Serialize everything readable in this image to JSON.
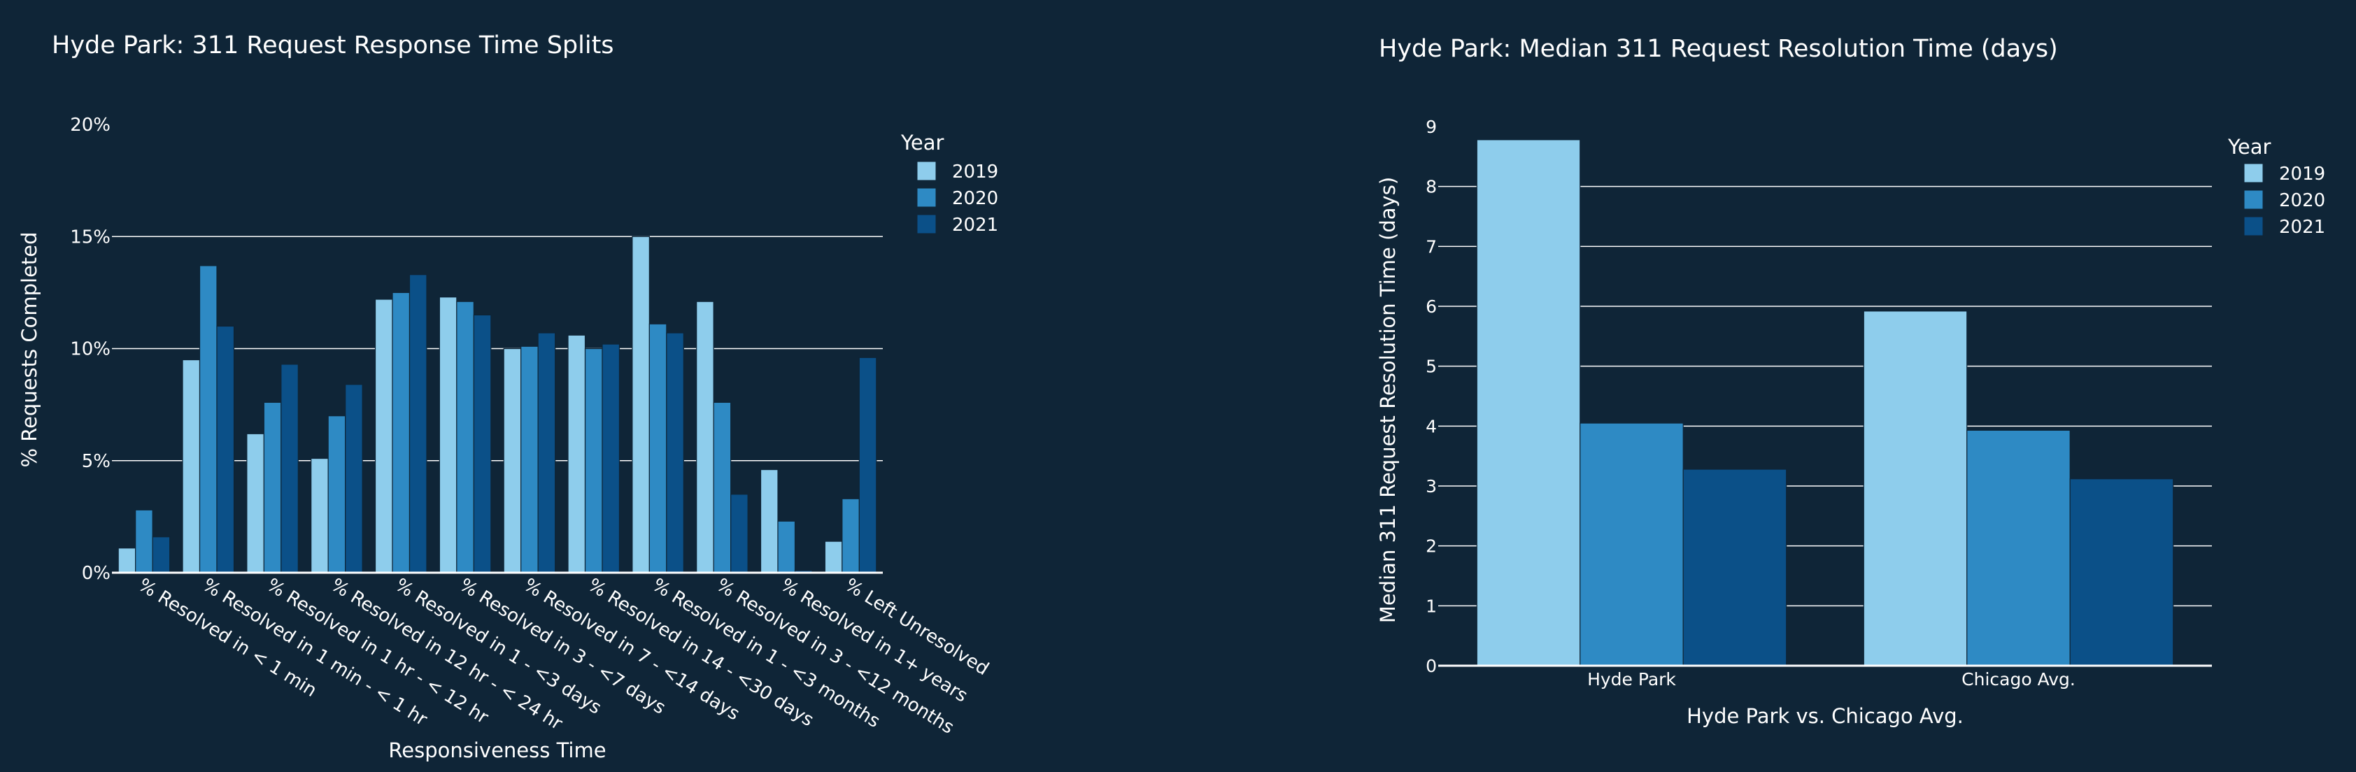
{
  "chart_data": [
    {
      "type": "bar",
      "title": "Hyde Park: 311 Request Response Time Splits",
      "xlabel": "Responsiveness Time",
      "ylabel": "% Requests Completed",
      "ylim": [
        0,
        20
      ],
      "yticks": [
        0,
        5,
        10,
        15,
        20
      ],
      "ytick_labels": [
        "0%",
        "5%",
        "10%",
        "15%",
        "20%"
      ],
      "grid": true,
      "legend_title": "Year",
      "legend_position": "top-right",
      "categories": [
        "% Resolved in < 1 min",
        "% Resolved in 1 min - < 1 hr",
        "% Resolved in 1 hr - < 12 hr",
        "% Resolved in 12 hr - < 24 hr",
        "% Resolved in 1 - <3 days",
        "% Resolved in 3 - <7 days",
        "% Resolved in 7 - <14 days",
        "% Resolved in 14 - <30 days",
        "% Resolved in 1 - <3 months",
        "% Resolved in 3 - <12 months",
        "% Resolved in 1+ years",
        "% Left Unresolved"
      ],
      "series": [
        {
          "name": "2019",
          "color": "#8ecdec",
          "values": [
            1.1,
            9.5,
            6.2,
            5.1,
            12.2,
            12.3,
            10.0,
            10.6,
            15.0,
            12.1,
            4.6,
            1.4
          ]
        },
        {
          "name": "2020",
          "color": "#2e8ac4",
          "values": [
            2.8,
            13.7,
            7.6,
            7.0,
            12.5,
            12.1,
            10.1,
            10.0,
            11.1,
            7.6,
            2.3,
            3.3
          ]
        },
        {
          "name": "2021",
          "color": "#0b5088",
          "values": [
            1.6,
            11.0,
            9.3,
            8.4,
            13.3,
            11.5,
            10.7,
            10.2,
            10.7,
            3.5,
            0.1,
            9.6
          ]
        }
      ]
    },
    {
      "type": "bar",
      "title": "Hyde Park: Median 311 Request Resolution Time (days)",
      "xlabel": "Hyde Park vs. Chicago Avg.",
      "ylabel": "Median 311 Request Resolution Time (days)",
      "ylim": [
        0,
        9
      ],
      "yticks": [
        0,
        1,
        2,
        3,
        4,
        5,
        6,
        7,
        8,
        9
      ],
      "ytick_labels": [
        "0",
        "1",
        "2",
        "3",
        "4",
        "5",
        "6",
        "7",
        "8",
        "9"
      ],
      "grid": true,
      "legend_title": "Year",
      "legend_position": "top-right",
      "categories": [
        "Hyde Park",
        "Chicago Avg."
      ],
      "series": [
        {
          "name": "2019",
          "color": "#8ecdec",
          "values": [
            8.78,
            5.92
          ]
        },
        {
          "name": "2020",
          "color": "#2e8ac4",
          "values": [
            4.05,
            3.93
          ]
        },
        {
          "name": "2021",
          "color": "#0b5088",
          "values": [
            3.28,
            3.12
          ]
        }
      ]
    }
  ]
}
